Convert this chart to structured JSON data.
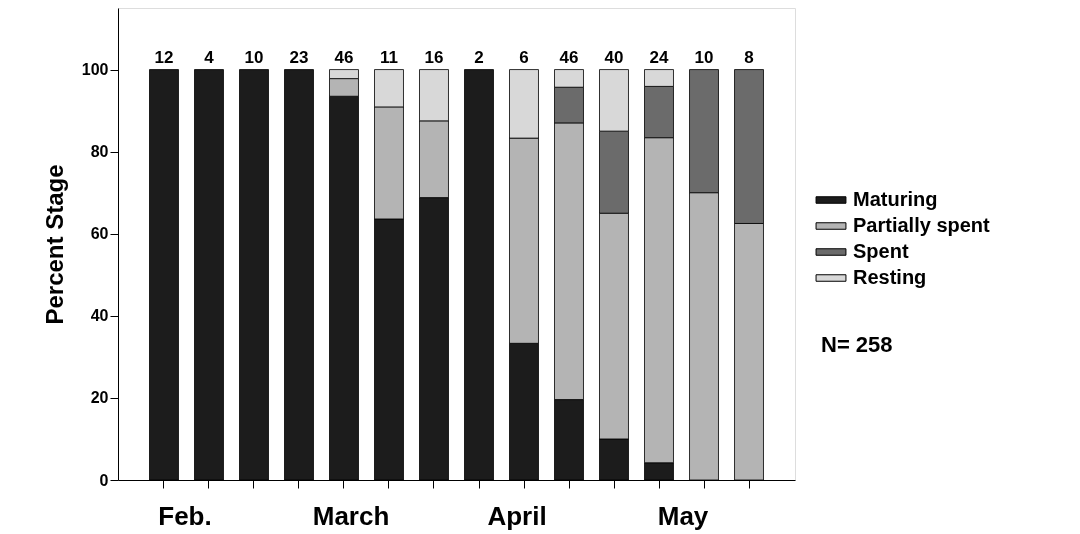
{
  "chart_data": {
    "type": "bar",
    "stacked": true,
    "ylabel": "Percent Stage",
    "categories": [
      null,
      null,
      null,
      null,
      null,
      null,
      null,
      null,
      null,
      null,
      null,
      null,
      null,
      null
    ],
    "ylim": [
      0,
      115
    ],
    "yticks": [
      0,
      20,
      40,
      60,
      80,
      100
    ],
    "series": [
      {
        "name": "Maturing",
        "color": "#1c1c1c",
        "values": [
          100,
          100,
          100,
          100,
          93.5,
          63.6,
          68.8,
          100,
          33.3,
          19.6,
          10,
          4.2,
          null,
          null
        ]
      },
      {
        "name": "Partially spent",
        "color": "#b4b4b4",
        "values": [
          null,
          null,
          null,
          null,
          4.3,
          27.3,
          18.7,
          null,
          50,
          67.4,
          55,
          79.2,
          70,
          62.5
        ]
      },
      {
        "name": "Spent",
        "color": "#6b6b6b",
        "values": [
          null,
          null,
          null,
          null,
          null,
          null,
          null,
          null,
          null,
          8.7,
          20,
          12.5,
          30,
          37.5
        ]
      },
      {
        "name": "Resting",
        "color": "#d8d8d8",
        "values": [
          null,
          null,
          null,
          null,
          2.2,
          9.1,
          12.5,
          null,
          16.7,
          4.3,
          15,
          4.1,
          null,
          null
        ]
      }
    ],
    "legend": "right",
    "grid": false,
    "annotations": [
      {
        "text": "12",
        "y": 100
      },
      {
        "text": "4",
        "y": 100
      },
      {
        "text": "10",
        "y": 100
      },
      {
        "text": "23",
        "y": 100
      },
      {
        "text": "46",
        "y": 100
      },
      {
        "text": "11",
        "y": 100
      },
      {
        "text": "16",
        "y": 100
      },
      {
        "text": "2",
        "y": 100
      },
      {
        "text": "6",
        "y": 100
      },
      {
        "text": "46",
        "y": 100
      },
      {
        "text": "40",
        "y": 100
      },
      {
        "text": "24",
        "y": 100
      },
      {
        "text": "10",
        "y": 100
      },
      {
        "text": "8",
        "y": 100
      },
      "Feb.",
      "March",
      "April",
      "May",
      "N= 258"
    ]
  }
}
